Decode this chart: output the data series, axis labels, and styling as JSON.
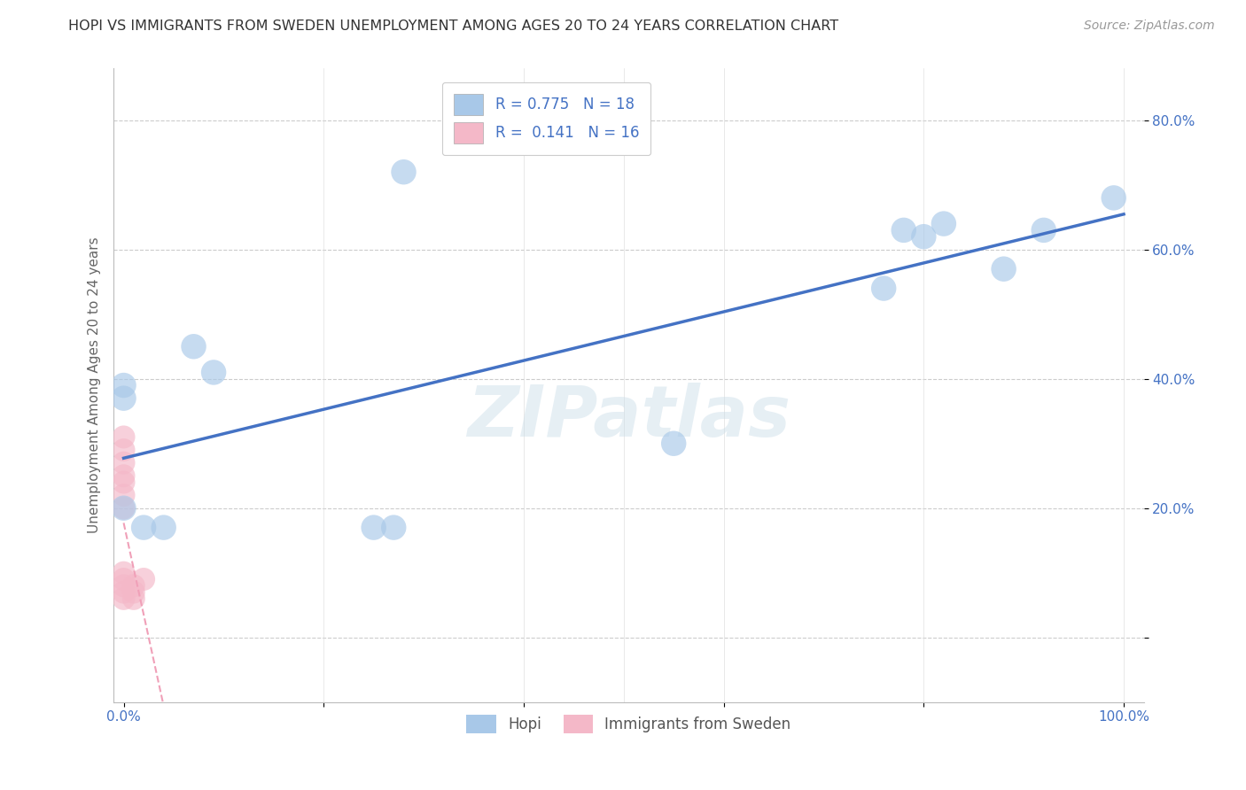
{
  "title": "HOPI VS IMMIGRANTS FROM SWEDEN UNEMPLOYMENT AMONG AGES 20 TO 24 YEARS CORRELATION CHART",
  "source": "Source: ZipAtlas.com",
  "ylabel": "Unemployment Among Ages 20 to 24 years",
  "xlim": [
    -0.01,
    1.02
  ],
  "ylim": [
    -0.1,
    0.88
  ],
  "ytick_positions": [
    0.0,
    0.2,
    0.4,
    0.6,
    0.8
  ],
  "yticklabels": [
    "",
    "20.0%",
    "40.0%",
    "60.0%",
    "80.0%"
  ],
  "xtick_positions": [
    0.0,
    0.2,
    0.4,
    0.6,
    0.8,
    1.0
  ],
  "xticklabels": [
    "0.0%",
    "",
    "",
    "",
    "",
    "100.0%"
  ],
  "hopi_R": 0.775,
  "hopi_N": 18,
  "sweden_R": 0.141,
  "sweden_N": 16,
  "hopi_color": "#a8c8e8",
  "sweden_color": "#f4b8c8",
  "hopi_line_color": "#4472c4",
  "sweden_line_color": "#f0a0b8",
  "legend_labels": [
    "Hopi",
    "Immigrants from Sweden"
  ],
  "watermark": "ZIPatlas",
  "hopi_points": [
    [
      0.0,
      0.2
    ],
    [
      0.0,
      0.39
    ],
    [
      0.0,
      0.37
    ],
    [
      0.02,
      0.17
    ],
    [
      0.04,
      0.17
    ],
    [
      0.07,
      0.45
    ],
    [
      0.09,
      0.41
    ],
    [
      0.25,
      0.17
    ],
    [
      0.27,
      0.17
    ],
    [
      0.28,
      0.72
    ],
    [
      0.55,
      0.3
    ],
    [
      0.76,
      0.54
    ],
    [
      0.78,
      0.63
    ],
    [
      0.8,
      0.62
    ],
    [
      0.82,
      0.64
    ],
    [
      0.88,
      0.57
    ],
    [
      0.92,
      0.63
    ],
    [
      0.99,
      0.68
    ]
  ],
  "sweden_points": [
    [
      0.0,
      0.2
    ],
    [
      0.0,
      0.22
    ],
    [
      0.0,
      0.24
    ],
    [
      0.0,
      0.25
    ],
    [
      0.0,
      0.27
    ],
    [
      0.0,
      0.29
    ],
    [
      0.0,
      0.31
    ],
    [
      0.0,
      0.06
    ],
    [
      0.0,
      0.07
    ],
    [
      0.0,
      0.08
    ],
    [
      0.0,
      0.09
    ],
    [
      0.0,
      0.1
    ],
    [
      0.01,
      0.06
    ],
    [
      0.01,
      0.07
    ],
    [
      0.01,
      0.08
    ],
    [
      0.02,
      0.09
    ]
  ],
  "background_color": "#ffffff",
  "grid_color": "#cccccc"
}
